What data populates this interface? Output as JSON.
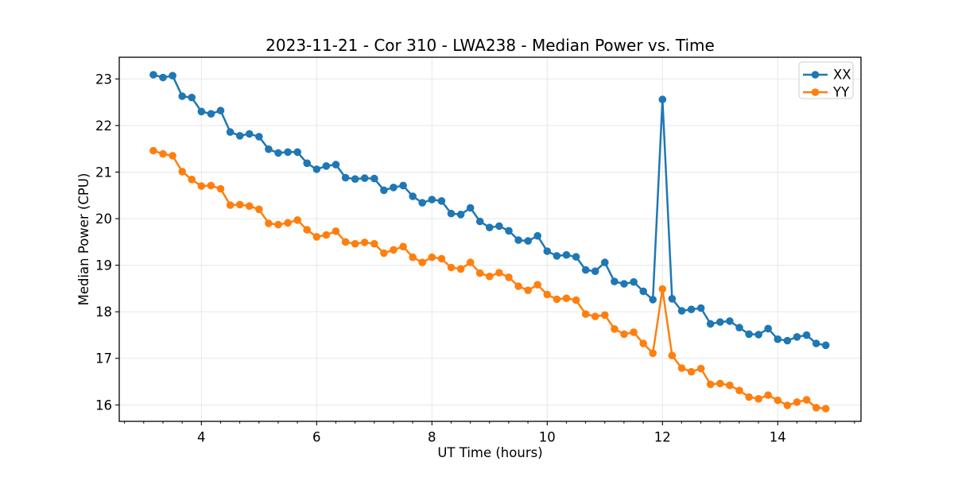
{
  "chart_data": {
    "type": "line",
    "title": "2023-11-21 - Cor 310 - LWA238 - Median Power vs. Time",
    "xlabel": "UT Time (hours)",
    "ylabel": "Median Power (CPU)",
    "legend_position": "upper right",
    "grid": true,
    "marker": "circle",
    "x_ticks": [
      4,
      6,
      8,
      10,
      12,
      14
    ],
    "y_ticks": [
      16,
      17,
      18,
      19,
      20,
      21,
      22,
      23
    ],
    "x_minor_step": 0.3333,
    "xlim": [
      2.575,
      15.444
    ],
    "ylim": [
      15.647,
      23.466
    ],
    "x": [
      3.167,
      3.333,
      3.5,
      3.667,
      3.833,
      4.0,
      4.167,
      4.333,
      4.5,
      4.667,
      4.833,
      5.0,
      5.167,
      5.333,
      5.5,
      5.667,
      5.833,
      6.0,
      6.167,
      6.333,
      6.5,
      6.667,
      6.833,
      7.0,
      7.167,
      7.333,
      7.5,
      7.667,
      7.833,
      8.0,
      8.167,
      8.333,
      8.5,
      8.667,
      8.833,
      9.0,
      9.167,
      9.333,
      9.5,
      9.667,
      9.833,
      10.0,
      10.167,
      10.333,
      10.5,
      10.667,
      10.833,
      11.0,
      11.167,
      11.333,
      11.5,
      11.667,
      11.833,
      12.0,
      12.167,
      12.333,
      12.5,
      12.667,
      12.833,
      13.0,
      13.167,
      13.333,
      13.5,
      13.667,
      13.833,
      14.0,
      14.167,
      14.333,
      14.5,
      14.667,
      14.833
    ],
    "series": [
      {
        "name": "XX",
        "color": "#1f77b4",
        "values": [
          23.09,
          23.03,
          23.07,
          22.63,
          22.6,
          22.3,
          22.25,
          22.32,
          21.86,
          21.78,
          21.82,
          21.76,
          21.49,
          21.41,
          21.43,
          21.43,
          21.19,
          21.06,
          21.13,
          21.16,
          20.88,
          20.85,
          20.87,
          20.86,
          20.61,
          20.67,
          20.71,
          20.48,
          20.34,
          20.41,
          20.38,
          20.11,
          20.09,
          20.23,
          19.94,
          19.81,
          19.84,
          19.74,
          19.54,
          19.52,
          19.63,
          19.3,
          19.2,
          19.22,
          19.18,
          18.9,
          18.87,
          19.06,
          18.65,
          18.6,
          18.64,
          18.44,
          18.26,
          22.56,
          18.28,
          18.02,
          18.05,
          18.08,
          17.74,
          17.78,
          17.8,
          17.66,
          17.52,
          17.51,
          17.64,
          17.41,
          17.38,
          17.46,
          17.5,
          17.32,
          17.28
        ]
      },
      {
        "name": "YY",
        "color": "#ff7f0e",
        "values": [
          21.46,
          21.39,
          21.35,
          21.01,
          20.84,
          20.7,
          20.71,
          20.64,
          20.29,
          20.3,
          20.27,
          20.2,
          19.9,
          19.87,
          19.91,
          19.97,
          19.76,
          19.61,
          19.65,
          19.73,
          19.5,
          19.46,
          19.49,
          19.46,
          19.26,
          19.33,
          19.4,
          19.17,
          19.06,
          19.17,
          19.14,
          18.95,
          18.92,
          19.06,
          18.83,
          18.76,
          18.84,
          18.74,
          18.55,
          18.46,
          18.58,
          18.37,
          18.27,
          18.29,
          18.25,
          17.95,
          17.9,
          17.93,
          17.63,
          17.52,
          17.56,
          17.32,
          17.11,
          18.49,
          17.06,
          16.79,
          16.71,
          16.78,
          16.44,
          16.46,
          16.42,
          16.31,
          16.17,
          16.13,
          16.21,
          16.1,
          15.99,
          16.06,
          16.11,
          15.94,
          15.92
        ]
      }
    ],
    "colors": {
      "grid": "#e7e7e7",
      "spine": "#000000",
      "background": "#ffffff",
      "legend_border": "#cccccc"
    }
  }
}
